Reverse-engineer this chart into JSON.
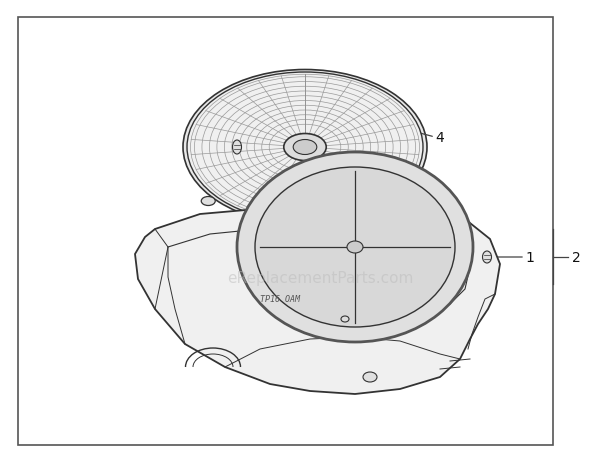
{
  "background_color": "#ffffff",
  "border_color": "#555555",
  "border_linewidth": 1.2,
  "watermark_text": "eReplacementParts.com",
  "watermark_color": "#bbbbbb",
  "watermark_fontsize": 11,
  "watermark_alpha": 0.5,
  "line_color": "#333333",
  "label_fontsize": 10,
  "fill_light": "#f7f7f7",
  "fill_mid": "#eeeeee",
  "fill_dark": "#dedede",
  "grate_color": "#aaaaaa"
}
